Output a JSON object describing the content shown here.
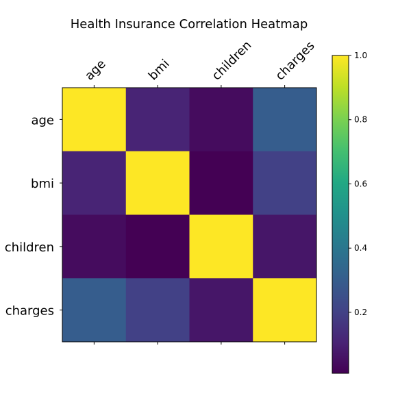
{
  "chart_data": {
    "type": "heatmap",
    "title": "Health Insurance Correlation Heatmap",
    "categories": [
      "age",
      "bmi",
      "children",
      "charges"
    ],
    "matrix": [
      [
        1.0,
        0.11,
        0.04,
        0.3
      ],
      [
        0.11,
        1.0,
        0.01,
        0.2
      ],
      [
        0.04,
        0.01,
        1.0,
        0.07
      ],
      [
        0.3,
        0.2,
        0.07,
        1.0
      ]
    ],
    "colormap": "viridis",
    "colorbar": {
      "min": 0.01,
      "max": 1.0,
      "ticks": [
        0.2,
        0.4,
        0.6,
        0.8,
        1.0
      ],
      "tick_labels": [
        "0.2",
        "0.4",
        "0.6",
        "0.8",
        "1.0"
      ]
    },
    "x_tick_rotation": "45°",
    "x_labels_position": "top",
    "colorbar_position": "right"
  }
}
